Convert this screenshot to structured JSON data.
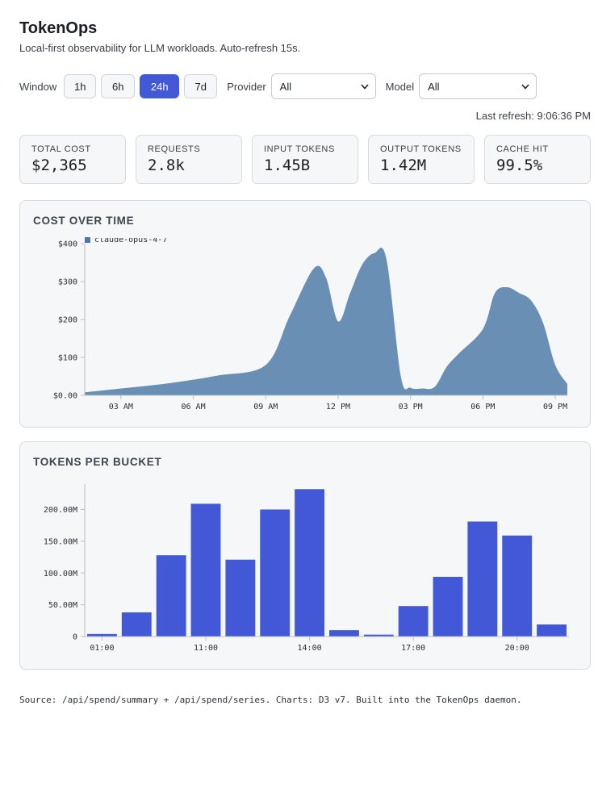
{
  "app": {
    "title": "TokenOps",
    "subtitle": "Local-first observability for LLM workloads. Auto-refresh 15s."
  },
  "controls": {
    "window_label": "Window",
    "windows": [
      {
        "label": "1h",
        "active": false
      },
      {
        "label": "6h",
        "active": false
      },
      {
        "label": "24h",
        "active": true
      },
      {
        "label": "7d",
        "active": false
      }
    ],
    "provider_label": "Provider",
    "provider_value": "All",
    "model_label": "Model",
    "model_value": "All"
  },
  "last_refresh": "Last refresh: 9:06:36 PM",
  "stats": [
    {
      "label": "TOTAL COST",
      "value": "$2,365"
    },
    {
      "label": "REQUESTS",
      "value": "2.8k"
    },
    {
      "label": "INPUT TOKENS",
      "value": "1.45B"
    },
    {
      "label": "OUTPUT TOKENS",
      "value": "1.42M"
    },
    {
      "label": "CACHE HIT",
      "value": "99.5%"
    }
  ],
  "colors": {
    "accent": "#4258d6",
    "area_fill": "#6a8fb5",
    "legend_swatch": "#4f76a6",
    "bar_fill": "#4258d6"
  },
  "chart_data": [
    {
      "type": "area",
      "title": "COST OVER TIME",
      "legend": [
        "claude-opus-4-7"
      ],
      "legend_placement": "top-left",
      "ylim": [
        0,
        400
      ],
      "y_ticks": [
        "$0.00",
        "$100",
        "$200",
        "$300",
        "$400"
      ],
      "x_ticks": [
        "03 AM",
        "06 AM",
        "09 AM",
        "12 PM",
        "03 PM",
        "06 PM",
        "09 PM"
      ],
      "x_tick_hours": [
        3,
        6,
        9,
        12,
        15,
        18,
        21
      ],
      "xlim_hours": [
        1.5,
        21.5
      ],
      "series": [
        {
          "name": "claude-opus-4-7",
          "x_hours": [
            1.5,
            3,
            5,
            7,
            9,
            10,
            11,
            11.5,
            12,
            12.5,
            13,
            13.5,
            14,
            14.6,
            15,
            15.5,
            16,
            16.5,
            17,
            18,
            18.5,
            19,
            19.5,
            20,
            20.5,
            21,
            21.5
          ],
          "values": [
            8,
            18,
            32,
            52,
            80,
            210,
            335,
            310,
            195,
            270,
            345,
            375,
            360,
            50,
            20,
            18,
            22,
            75,
            110,
            175,
            270,
            285,
            270,
            250,
            190,
            80,
            30
          ]
        }
      ]
    },
    {
      "type": "bar",
      "title": "TOKENS PER BUCKET",
      "ylim": [
        0,
        240
      ],
      "y_unit": "M",
      "y_ticks": [
        "0",
        "50.00M",
        "100.00M",
        "150.00M",
        "200.00M"
      ],
      "x_ticks": [
        "01:00",
        "11:00",
        "14:00",
        "17:00",
        "20:00"
      ],
      "x_tick_index": [
        0,
        3,
        6,
        9,
        12
      ],
      "values_millions": [
        4,
        38,
        128,
        209,
        121,
        200,
        232,
        10,
        3,
        48,
        94,
        181,
        159,
        19
      ]
    }
  ],
  "source_note": "Source: /api/spend/summary + /api/spend/series. Charts: D3 v7. Built into the TokenOps daemon."
}
